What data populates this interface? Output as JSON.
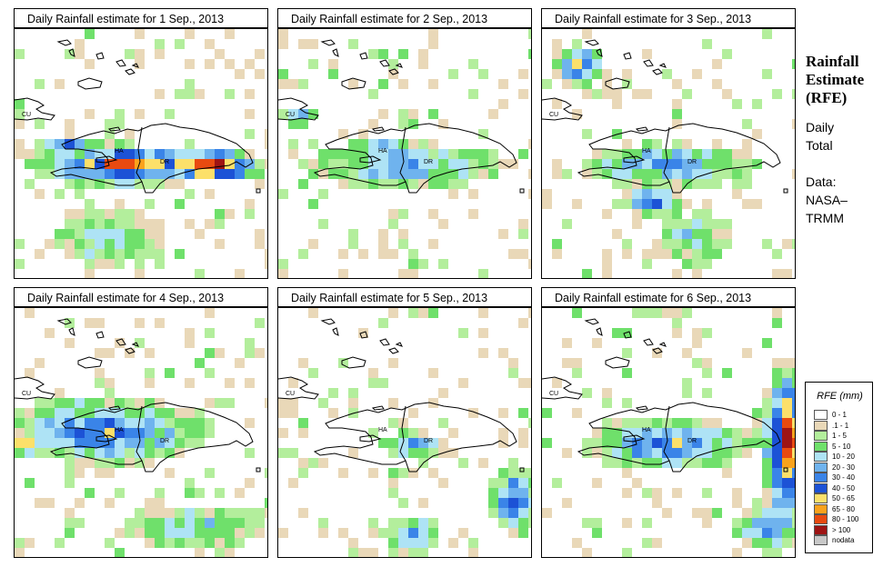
{
  "panels": [
    {
      "title": "Daily Rainfall estimate for  1 Sep., 2013",
      "date": "1 Sep., 2013"
    },
    {
      "title": "Daily Rainfall estimate for  2 Sep., 2013",
      "date": "2 Sep., 2013"
    },
    {
      "title": "Daily Rainfall estimate for  3 Sep., 2013",
      "date": "3 Sep., 2013"
    },
    {
      "title": "Daily Rainfall estimate for  4 Sep., 2013",
      "date": "4 Sep., 2013"
    },
    {
      "title": "Daily Rainfall estimate for  5 Sep., 2013",
      "date": "5 Sep., 2013"
    },
    {
      "title": "Daily Rainfall estimate for  6 Sep., 2013",
      "date": "6 Sep., 2013"
    }
  ],
  "map_labels": {
    "cuba": "CU",
    "haiti": "HA",
    "dominican_republic": "DR"
  },
  "side_panel": {
    "title_line1": "Rainfall",
    "title_line2": "Estimate",
    "title_line3": "(RFE)",
    "period_line1": "Daily",
    "period_line2": "Total",
    "source_line1": "Data:",
    "source_line2": "NASA–",
    "source_line3": "TRMM"
  },
  "legend": {
    "title": "RFE (mm)",
    "classes": [
      {
        "label": "0 - 1",
        "color": "#ffffff"
      },
      {
        "label": ".1 - 1",
        "color": "#e9d8b8"
      },
      {
        "label": "1 - 5",
        "color": "#b3ee9c"
      },
      {
        "label": "5 - 10",
        "color": "#6fe06b"
      },
      {
        "label": "10 - 20",
        "color": "#aee3f5"
      },
      {
        "label": "20 - 30",
        "color": "#6fb3ee"
      },
      {
        "label": "30 - 40",
        "color": "#3a84e8"
      },
      {
        "label": "40 - 50",
        "color": "#1c52d6"
      },
      {
        "label": "50 - 65",
        "color": "#fce06a"
      },
      {
        "label": "65 - 80",
        "color": "#f9a21c"
      },
      {
        "label": "80 - 100",
        "color": "#e84a10"
      },
      {
        "label": "> 100",
        "color": "#9e1414"
      },
      {
        "label": "nodata",
        "color": "#c8c8c8"
      }
    ]
  }
}
